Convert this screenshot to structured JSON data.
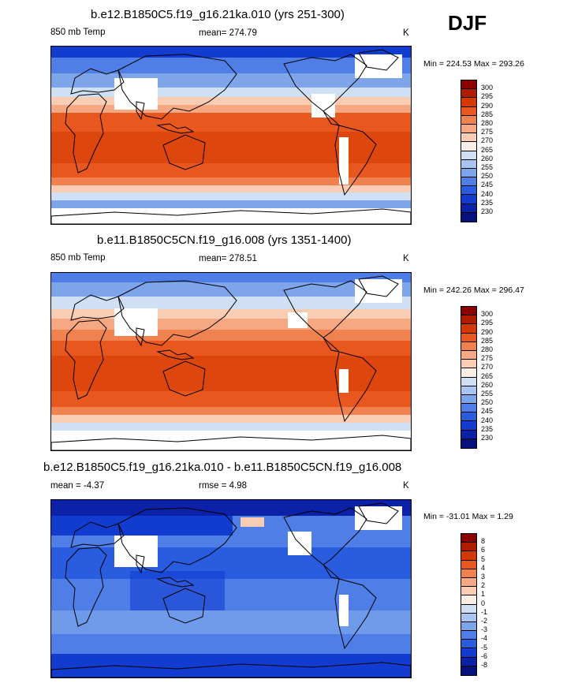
{
  "season": "DJF",
  "panels": [
    {
      "title": "b.e12.B1850C5.f19_g16.21ka.010 (yrs 251-300)",
      "left_label": "850 mb Temp",
      "center_label": "mean= 274.79",
      "units": "K",
      "minmax": "Min = 224.53 Max = 293.26",
      "levels": [
        "300",
        "295",
        "290",
        "285",
        "280",
        "275",
        "270",
        "265",
        "260",
        "255",
        "250",
        "245",
        "240",
        "235",
        "230"
      ],
      "colors": [
        "#8b0000",
        "#b01c00",
        "#d43a00",
        "#e8571d",
        "#f0824f",
        "#f5a882",
        "#f9cdb4",
        "#fbeee4",
        "#cfe0f5",
        "#a9c4f0",
        "#7ea5ea",
        "#4f7fe6",
        "#2a5ce0",
        "#123cd0",
        "#0b22a8",
        "#04127a"
      ]
    },
    {
      "title": "b.e11.B1850C5CN.f19_g16.008 (yrs 1351-1400)",
      "left_label": "850 mb Temp",
      "center_label": "mean= 278.51",
      "units": "K",
      "minmax": "Min = 242.26 Max = 296.47",
      "levels": [
        "300",
        "295",
        "290",
        "285",
        "280",
        "275",
        "270",
        "265",
        "260",
        "255",
        "250",
        "245",
        "240",
        "235",
        "230"
      ],
      "colors": [
        "#8b0000",
        "#b01c00",
        "#d43a00",
        "#e8571d",
        "#f0824f",
        "#f5a882",
        "#f9cdb4",
        "#fbeee4",
        "#cfe0f5",
        "#a9c4f0",
        "#7ea5ea",
        "#4f7fe6",
        "#2a5ce0",
        "#123cd0",
        "#0b22a8",
        "#04127a"
      ]
    },
    {
      "title": "b.e12.B1850C5.f19_g16.21ka.010 - b.e11.B1850C5CN.f19_g16.008",
      "left_label": "mean =  -4.37",
      "center_label": "rmse =   4.98",
      "units": "K",
      "minmax": "Min = -31.01 Max =   1.29",
      "levels": [
        "8",
        "6",
        "5",
        "4",
        "3",
        "2",
        "1",
        "0",
        "-1",
        "-2",
        "-3",
        "-4",
        "-5",
        "-6",
        "-8"
      ],
      "colors": [
        "#8b0000",
        "#b01c00",
        "#d43a00",
        "#e8571d",
        "#f0824f",
        "#f5a882",
        "#f9cdb4",
        "#fbeee4",
        "#cfe0f5",
        "#a9c4f0",
        "#7ea5ea",
        "#4f7fe6",
        "#2a5ce0",
        "#123cd0",
        "#0b22a8",
        "#04127a"
      ]
    }
  ]
}
